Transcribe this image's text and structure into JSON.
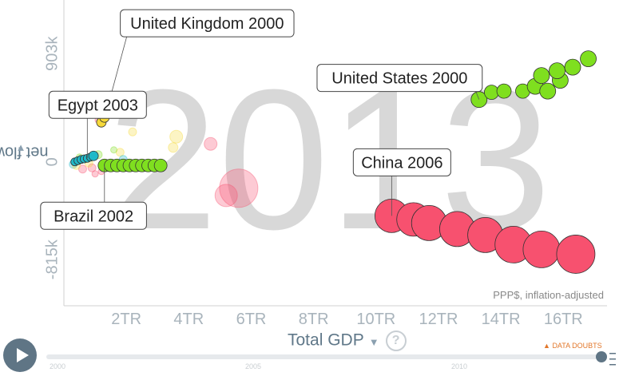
{
  "chart_data": {
    "type": "scatter",
    "year_watermark": "2013",
    "xlabel": "Total GDP",
    "ylabel": "net flow",
    "note": "PPP$, inflation-adjusted",
    "xlim": [
      0,
      17.4
    ],
    "ylim": [
      -1200,
      1350
    ],
    "x_ticks": [
      {
        "v": 2,
        "label": "2TR"
      },
      {
        "v": 4,
        "label": "4TR"
      },
      {
        "v": 6,
        "label": "6TR"
      },
      {
        "v": 8,
        "label": "8TR"
      },
      {
        "v": 10,
        "label": "10TR"
      },
      {
        "v": 12,
        "label": "12TR"
      },
      {
        "v": 14,
        "label": "14TR"
      },
      {
        "v": 16,
        "label": "16TR"
      }
    ],
    "y_ticks": [
      {
        "v": 903,
        "label": "903k"
      },
      {
        "v": 0,
        "label": "0"
      },
      {
        "v": -815,
        "label": "-815k"
      }
    ],
    "trails": [
      {
        "name": "United States",
        "color": "#7fdf1f",
        "label": "United States 2000",
        "points": [
          {
            "x": 13.3,
            "y": 520,
            "r": 10
          },
          {
            "x": 13.7,
            "y": 580,
            "r": 9
          },
          {
            "x": 14.1,
            "y": 590,
            "r": 9
          },
          {
            "x": 14.7,
            "y": 590,
            "r": 9
          },
          {
            "x": 15.1,
            "y": 630,
            "r": 10
          },
          {
            "x": 15.5,
            "y": 590,
            "r": 10
          },
          {
            "x": 15.9,
            "y": 680,
            "r": 10
          },
          {
            "x": 15.3,
            "y": 720,
            "r": 10
          },
          {
            "x": 15.8,
            "y": 760,
            "r": 10
          },
          {
            "x": 16.3,
            "y": 790,
            "r": 10
          },
          {
            "x": 16.8,
            "y": 860,
            "r": 10
          }
        ]
      },
      {
        "name": "China",
        "color": "#f7516f",
        "label": "China 2006",
        "points": [
          {
            "x": 10.5,
            "y": -450,
            "r": 21
          },
          {
            "x": 11.2,
            "y": -480,
            "r": 21
          },
          {
            "x": 11.7,
            "y": -510,
            "r": 22
          },
          {
            "x": 12.6,
            "y": -560,
            "r": 22
          },
          {
            "x": 13.5,
            "y": -610,
            "r": 22
          },
          {
            "x": 14.4,
            "y": -690,
            "r": 23
          },
          {
            "x": 15.3,
            "y": -730,
            "r": 23
          },
          {
            "x": 16.4,
            "y": -770,
            "r": 24
          }
        ]
      },
      {
        "name": "Brazil",
        "color": "#7fdf1f",
        "label": "Brazil 2002",
        "points": [
          {
            "x": 1.3,
            "y": -30,
            "r": 8
          },
          {
            "x": 1.5,
            "y": -30,
            "r": 8
          },
          {
            "x": 1.7,
            "y": -30,
            "r": 8
          },
          {
            "x": 1.9,
            "y": -30,
            "r": 8
          },
          {
            "x": 2.1,
            "y": -30,
            "r": 8
          },
          {
            "x": 2.3,
            "y": -30,
            "r": 8
          },
          {
            "x": 2.5,
            "y": -30,
            "r": 8
          },
          {
            "x": 2.7,
            "y": -30,
            "r": 8
          },
          {
            "x": 2.9,
            "y": -30,
            "r": 8
          },
          {
            "x": 3.1,
            "y": -30,
            "r": 8
          }
        ]
      },
      {
        "name": "United Kingdom",
        "color": "#f6d93a",
        "label": "United Kingdom 2000",
        "points": [
          {
            "x": 1.2,
            "y": 330,
            "r": 6
          },
          {
            "x": 1.3,
            "y": 370,
            "r": 6
          },
          {
            "x": 1.4,
            "y": 420,
            "r": 6
          },
          {
            "x": 1.45,
            "y": 470,
            "r": 6
          },
          {
            "x": 1.5,
            "y": 510,
            "r": 6
          },
          {
            "x": 1.5,
            "y": 550,
            "r": 6
          }
        ]
      },
      {
        "name": "Egypt",
        "color": "#1fb9c8",
        "label": "Egypt 2003",
        "points": [
          {
            "x": 0.35,
            "y": 0,
            "r": 5
          },
          {
            "x": 0.45,
            "y": 10,
            "r": 5
          },
          {
            "x": 0.55,
            "y": 20,
            "r": 5
          },
          {
            "x": 0.65,
            "y": 25,
            "r": 5
          },
          {
            "x": 0.75,
            "y": 30,
            "r": 5
          },
          {
            "x": 0.85,
            "y": 40,
            "r": 5
          },
          {
            "x": 0.95,
            "y": 50,
            "r": 6
          }
        ]
      }
    ],
    "background_bubbles": [
      {
        "x": 5.6,
        "y": -220,
        "r": 24,
        "color": "#f7516f"
      },
      {
        "x": 5.2,
        "y": -280,
        "r": 14,
        "color": "#f7516f"
      },
      {
        "x": 3.6,
        "y": 210,
        "r": 8,
        "color": "#f6d93a"
      },
      {
        "x": 3.5,
        "y": 120,
        "r": 6,
        "color": "#f6d93a"
      },
      {
        "x": 2.2,
        "y": 250,
        "r": 5,
        "color": "#f6d93a"
      },
      {
        "x": 1.8,
        "y": 80,
        "r": 5,
        "color": "#f6d93a"
      },
      {
        "x": 1.1,
        "y": 350,
        "r": 4,
        "color": "#f7516f"
      },
      {
        "x": 1.9,
        "y": 20,
        "r": 5,
        "color": "#1fb9c8"
      },
      {
        "x": 1.5,
        "y": -40,
        "r": 5,
        "color": "#f7516f"
      },
      {
        "x": 4.7,
        "y": 150,
        "r": 8,
        "color": "#f7516f"
      },
      {
        "x": 0.6,
        "y": -60,
        "r": 5,
        "color": "#f7516f"
      },
      {
        "x": 0.9,
        "y": -50,
        "r": 5,
        "color": "#f7516f"
      },
      {
        "x": 1.2,
        "y": -80,
        "r": 4,
        "color": "#f7516f"
      },
      {
        "x": 0.3,
        "y": -20,
        "r": 5,
        "color": "#1fb9c8"
      },
      {
        "x": 0.5,
        "y": 40,
        "r": 4,
        "color": "#7fdf1f"
      },
      {
        "x": 1.1,
        "y": 60,
        "r": 5,
        "color": "#7fdf1f"
      },
      {
        "x": 0.8,
        "y": -10,
        "r": 5,
        "color": "#f6d93a"
      },
      {
        "x": 1.6,
        "y": 100,
        "r": 4,
        "color": "#7fdf1f"
      },
      {
        "x": 0.4,
        "y": -30,
        "r": 5,
        "color": "#f6d93a"
      },
      {
        "x": 1.0,
        "y": -100,
        "r": 4,
        "color": "#f7516f"
      }
    ],
    "labels": [
      {
        "name": "United Kingdom",
        "text": "United Kingdom 2000",
        "anchor": {
          "x": 1.5,
          "y": 550
        },
        "pos": "upper-right"
      },
      {
        "name": "Egypt",
        "text": "Egypt 2003",
        "anchor": {
          "x": 0.75,
          "y": 30
        },
        "pos": "upper-left"
      },
      {
        "name": "United States",
        "text": "United States 2000",
        "anchor": {
          "x": 13.3,
          "y": 520
        },
        "pos": "left"
      },
      {
        "name": "China",
        "text": "China 2006",
        "anchor": {
          "x": 10.5,
          "y": -450
        },
        "pos": "upper-left"
      },
      {
        "name": "Brazil",
        "text": "Brazil 2002",
        "anchor": {
          "x": 1.3,
          "y": -30
        },
        "pos": "lower-left"
      }
    ]
  },
  "controls": {
    "play_label": "play",
    "timeline_years": [
      "2000",
      "2005",
      "2010"
    ],
    "data_doubts": "DATA DOUBTS",
    "x_menu_arrow": "▼",
    "y_menu_arrow": "▼",
    "help": "?"
  }
}
